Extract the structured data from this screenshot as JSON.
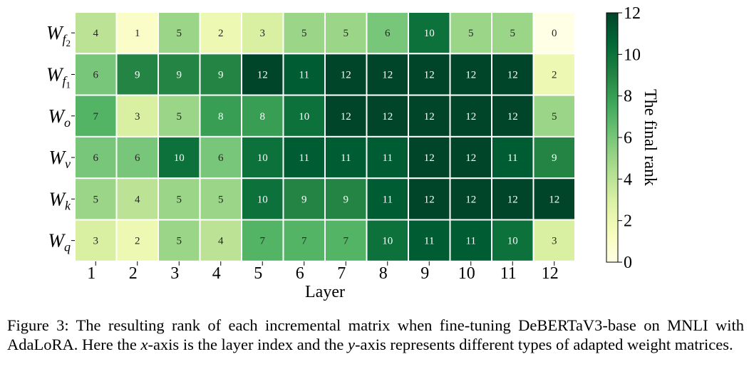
{
  "chart_data": {
    "type": "heatmap",
    "title": "",
    "xlabel": "Layer",
    "ylabel": "",
    "x_categories": [
      "1",
      "2",
      "3",
      "4",
      "5",
      "6",
      "7",
      "8",
      "9",
      "10",
      "11",
      "12"
    ],
    "rows": [
      {
        "base": "W",
        "sub": "f",
        "subsub": "2",
        "values": [
          4,
          1,
          5,
          2,
          3,
          5,
          5,
          6,
          10,
          5,
          5,
          0
        ]
      },
      {
        "base": "W",
        "sub": "f",
        "subsub": "1",
        "values": [
          6,
          9,
          9,
          9,
          12,
          11,
          12,
          12,
          12,
          12,
          12,
          2
        ]
      },
      {
        "base": "W",
        "sub": "o",
        "subsub": "",
        "values": [
          7,
          3,
          5,
          8,
          8,
          10,
          12,
          12,
          12,
          12,
          12,
          5
        ]
      },
      {
        "base": "W",
        "sub": "v",
        "subsub": "",
        "values": [
          6,
          6,
          10,
          6,
          10,
          11,
          11,
          11,
          12,
          12,
          11,
          9
        ]
      },
      {
        "base": "W",
        "sub": "k",
        "subsub": "",
        "values": [
          5,
          4,
          5,
          5,
          10,
          9,
          9,
          11,
          12,
          12,
          12,
          12
        ]
      },
      {
        "base": "W",
        "sub": "q",
        "subsub": "",
        "values": [
          3,
          2,
          5,
          4,
          7,
          7,
          7,
          10,
          11,
          11,
          10,
          3
        ]
      }
    ],
    "colorbar": {
      "label": "The final rank",
      "range": [
        0,
        12
      ],
      "ticks": [
        "0",
        "2",
        "4",
        "6",
        "8",
        "10",
        "12"
      ],
      "colormap": "YlGn"
    }
  },
  "caption": {
    "prefix": "Figure 3: The resulting rank of each incremental matrix when fine-tuning DeBERTaV3-base on MNLI with AdaLoRA. Here the ",
    "x_var": "x",
    "middle": "-axis is the layer index and the ",
    "y_var": "y",
    "suffix": "-axis represents different types of adapted weight matrices."
  }
}
